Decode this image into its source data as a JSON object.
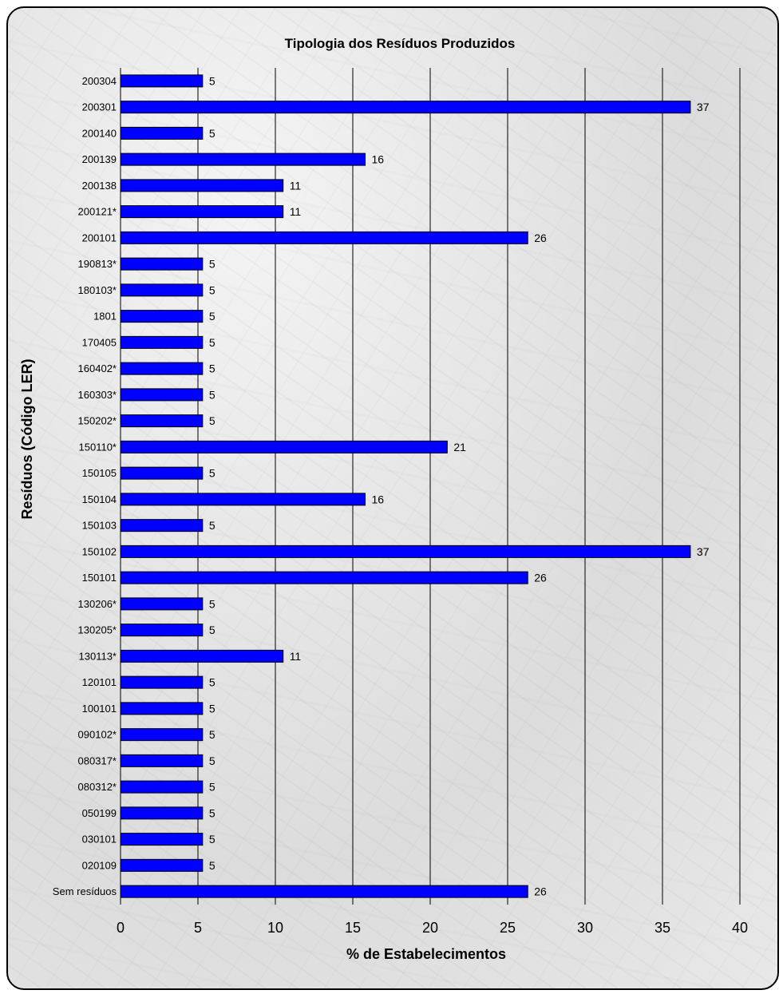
{
  "chart_data": {
    "type": "bar",
    "orientation": "horizontal",
    "title": "Tipologia dos Resíduos Produzidos",
    "xlabel": "% de Estabelecimentos",
    "ylabel": "Resíduos (Código LER)",
    "xlim": [
      0,
      40
    ],
    "xticks": [
      0,
      5,
      10,
      15,
      20,
      25,
      30,
      35,
      40
    ],
    "grid": "vertical",
    "bar_color": "#0000ff",
    "categories": [
      "200304",
      "200301",
      "200140",
      "200139",
      "200138",
      "200121*",
      "200101",
      "190813*",
      "180103*",
      "1801",
      "170405",
      "160402*",
      "160303*",
      "150202*",
      "150110*",
      "150105",
      "150104",
      "150103",
      "150102",
      "150101",
      "130206*",
      "130205*",
      "130113*",
      "120101",
      "100101",
      "090102*",
      "080317*",
      "080312*",
      "050199",
      "030101",
      "020109",
      "Sem resíduos"
    ],
    "values": [
      5.3,
      36.8,
      5.3,
      15.8,
      10.5,
      10.5,
      26.3,
      5.3,
      5.3,
      5.3,
      5.3,
      5.3,
      5.3,
      5.3,
      21.1,
      5.3,
      15.8,
      5.3,
      36.8,
      26.3,
      5.3,
      5.3,
      10.5,
      5.3,
      5.3,
      5.3,
      5.3,
      5.3,
      5.3,
      5.3,
      5.3,
      26.3
    ],
    "data_labels": [
      "5",
      "37",
      "5",
      "16",
      "11",
      "11",
      "26",
      "5",
      "5",
      "5",
      "5",
      "5",
      "5",
      "5",
      "21",
      "5",
      "16",
      "5",
      "37",
      "26",
      "5",
      "5",
      "11",
      "5",
      "5",
      "5",
      "5",
      "5",
      "5",
      "5",
      "5",
      "26"
    ]
  }
}
